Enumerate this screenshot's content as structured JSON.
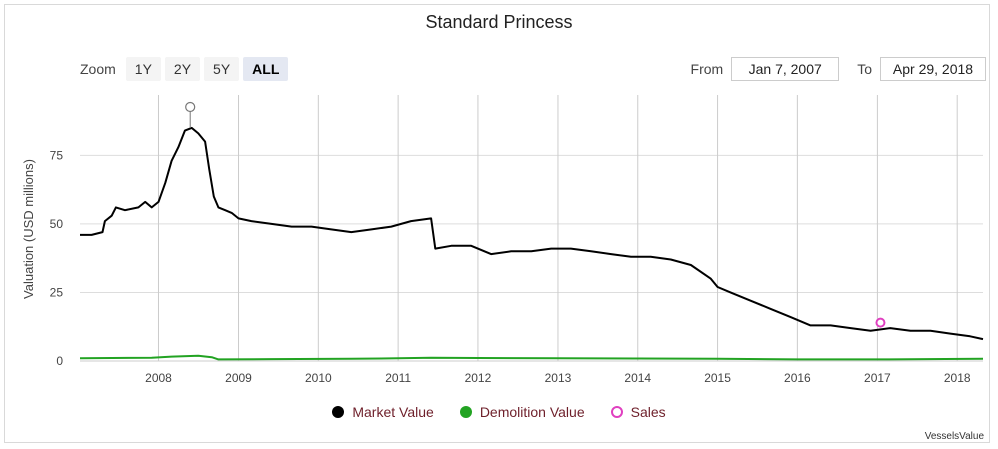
{
  "chart_data": {
    "type": "line",
    "title": "Standard Princess",
    "ylabel": "Valuation (USD millions)",
    "xlabel": "",
    "ylim": [
      0,
      97
    ],
    "xlim": [
      "2007-01-07",
      "2018-04-29"
    ],
    "y_ticks": [
      "0",
      "25",
      "50",
      "75"
    ],
    "x_ticks": [
      "2008",
      "2009",
      "2010",
      "2011",
      "2012",
      "2013",
      "2014",
      "2015",
      "2016",
      "2017",
      "2018"
    ],
    "grid": "vertical",
    "legend_position": "bottom",
    "series": [
      {
        "name": "Market Value",
        "color": "#000000",
        "points": [
          [
            "2007-01-07",
            46
          ],
          [
            "2007-03-01",
            46
          ],
          [
            "2007-04-20",
            47
          ],
          [
            "2007-05-01",
            51
          ],
          [
            "2007-06-01",
            53
          ],
          [
            "2007-06-20",
            56
          ],
          [
            "2007-08-01",
            55
          ],
          [
            "2007-10-01",
            56
          ],
          [
            "2007-11-01",
            58
          ],
          [
            "2007-12-01",
            56
          ],
          [
            "2008-01-01",
            58
          ],
          [
            "2008-02-01",
            65
          ],
          [
            "2008-03-01",
            73
          ],
          [
            "2008-04-01",
            78
          ],
          [
            "2008-05-01",
            84
          ],
          [
            "2008-06-01",
            85
          ],
          [
            "2008-07-01",
            83
          ],
          [
            "2008-08-01",
            80
          ],
          [
            "2008-08-20",
            70
          ],
          [
            "2008-09-10",
            60
          ],
          [
            "2008-10-01",
            56
          ],
          [
            "2008-11-01",
            55
          ],
          [
            "2008-12-01",
            54
          ],
          [
            "2009-01-01",
            52
          ],
          [
            "2009-03-01",
            51
          ],
          [
            "2009-06-01",
            50
          ],
          [
            "2009-09-01",
            49
          ],
          [
            "2009-12-01",
            49
          ],
          [
            "2010-03-01",
            48
          ],
          [
            "2010-06-01",
            47
          ],
          [
            "2010-09-01",
            48
          ],
          [
            "2010-12-01",
            49
          ],
          [
            "2011-03-01",
            51
          ],
          [
            "2011-06-01",
            52
          ],
          [
            "2011-06-20",
            41
          ],
          [
            "2011-09-01",
            42
          ],
          [
            "2011-12-01",
            42
          ],
          [
            "2012-03-01",
            39
          ],
          [
            "2012-06-01",
            40
          ],
          [
            "2012-09-01",
            40
          ],
          [
            "2012-12-01",
            41
          ],
          [
            "2013-03-01",
            41
          ],
          [
            "2013-06-01",
            40
          ],
          [
            "2013-09-01",
            39
          ],
          [
            "2013-12-01",
            38
          ],
          [
            "2014-03-01",
            38
          ],
          [
            "2014-06-01",
            37
          ],
          [
            "2014-09-01",
            35
          ],
          [
            "2014-12-01",
            30
          ],
          [
            "2015-01-01",
            27
          ],
          [
            "2015-03-01",
            25
          ],
          [
            "2015-06-01",
            22
          ],
          [
            "2015-09-01",
            19
          ],
          [
            "2015-12-01",
            16
          ],
          [
            "2016-03-01",
            13
          ],
          [
            "2016-06-01",
            13
          ],
          [
            "2016-09-01",
            12
          ],
          [
            "2016-12-01",
            11
          ],
          [
            "2017-03-01",
            12
          ],
          [
            "2017-06-01",
            11
          ],
          [
            "2017-09-01",
            11
          ],
          [
            "2017-12-01",
            10
          ],
          [
            "2018-03-01",
            9
          ],
          [
            "2018-04-29",
            8
          ]
        ]
      },
      {
        "name": "Demolition Value",
        "color": "#22a322",
        "points": [
          [
            "2007-01-07",
            1
          ],
          [
            "2007-12-01",
            1.2
          ],
          [
            "2008-03-01",
            1.6
          ],
          [
            "2008-07-01",
            1.9
          ],
          [
            "2008-09-01",
            1.4
          ],
          [
            "2008-10-01",
            0.6
          ],
          [
            "2009-06-01",
            0.7
          ],
          [
            "2010-06-01",
            0.8
          ],
          [
            "2011-01-01",
            1
          ],
          [
            "2011-06-01",
            1.2
          ],
          [
            "2012-01-01",
            1.1
          ],
          [
            "2013-01-01",
            1
          ],
          [
            "2014-01-01",
            0.9
          ],
          [
            "2015-01-01",
            0.8
          ],
          [
            "2016-01-01",
            0.6
          ],
          [
            "2017-01-01",
            0.6
          ],
          [
            "2018-04-29",
            0.8
          ]
        ]
      },
      {
        "name": "Sales",
        "color": "#e040c0",
        "points": [
          [
            "2017-01-15",
            14
          ]
        ]
      }
    ],
    "annotations": [
      {
        "type": "event_marker",
        "x": "2008-05-25",
        "y": 85
      }
    ]
  },
  "zoom": {
    "label": "Zoom",
    "options": [
      "1Y",
      "2Y",
      "5Y",
      "ALL"
    ],
    "active": "ALL"
  },
  "range": {
    "from_label": "From",
    "from_value": "Jan 7, 2007",
    "to_label": "To",
    "to_value": "Apr 29, 2018"
  },
  "legend": {
    "items": [
      "Market Value",
      "Demolition Value",
      "Sales"
    ]
  },
  "credit": "VesselsValue"
}
